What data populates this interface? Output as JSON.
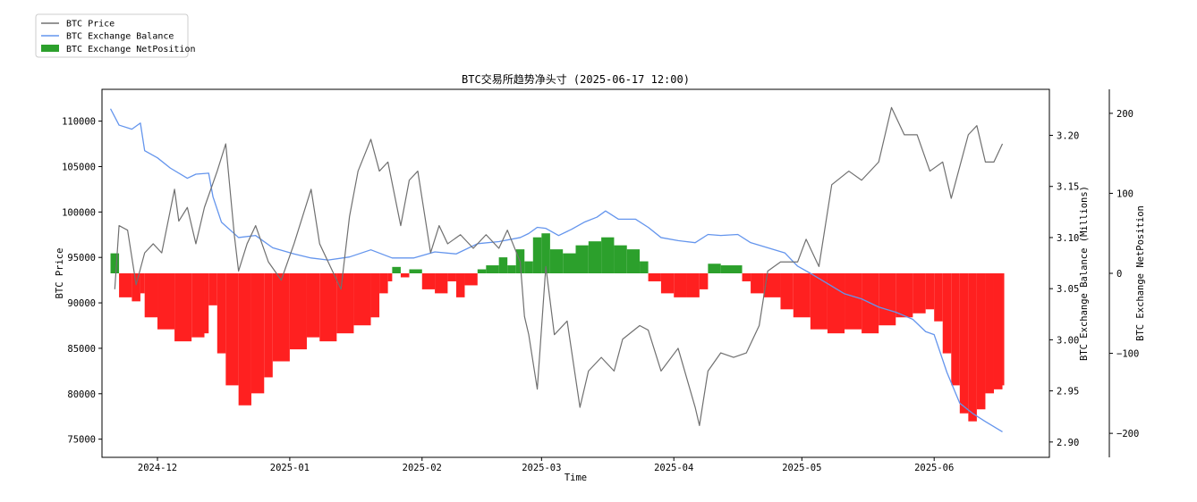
{
  "chart_data": {
    "type": "line",
    "title": "BTC交易所趋势净头寸 (2025-06-17 12:00)",
    "xlabel": "Time",
    "ylabel_left": "BTC Price",
    "ylabel_right1": "BTC Exchange Balance (Millions)",
    "ylabel_right2": "BTC Exchange NetPosition",
    "x_range": [
      "2024-11-18",
      "2025-06-28"
    ],
    "x_ticks": [
      "2024-12",
      "2025-01",
      "2025-02",
      "2025-03",
      "2025-04",
      "2025-05",
      "2025-06"
    ],
    "x_tick_dates": [
      "2024-12-01",
      "2025-01-01",
      "2025-02-01",
      "2025-03-01",
      "2025-04-01",
      "2025-05-01",
      "2025-06-01"
    ],
    "y_left": {
      "range": [
        73000,
        113500
      ],
      "ticks": [
        75000,
        80000,
        85000,
        90000,
        95000,
        100000,
        105000,
        110000
      ]
    },
    "y_right1": {
      "range": [
        2.885,
        3.245
      ],
      "ticks": [
        2.9,
        2.95,
        3.0,
        3.05,
        3.1,
        3.15,
        3.2
      ]
    },
    "y_right2": {
      "range": [
        -230,
        230
      ],
      "ticks": [
        -200,
        -100,
        0,
        100,
        200
      ]
    },
    "grid": false,
    "legend": {
      "placement": "top-left, outside plot",
      "entries": [
        "BTC Price",
        "BTC Exchange Balance",
        "BTC Exchange NetPosition"
      ]
    },
    "colors": {
      "price": "#707070",
      "balance": "#6495ed",
      "net_positive": "#2ca02c",
      "net_negative": "#ff2020"
    },
    "series": [
      {
        "name": "BTC Price",
        "axis": "left",
        "style": "line",
        "points": [
          [
            "2024-11-21",
            91500
          ],
          [
            "2024-11-22",
            98500
          ],
          [
            "2024-11-24",
            98000
          ],
          [
            "2024-11-26",
            92000
          ],
          [
            "2024-11-28",
            95500
          ],
          [
            "2024-11-30",
            96500
          ],
          [
            "2024-12-02",
            95500
          ],
          [
            "2024-12-05",
            102500
          ],
          [
            "2024-12-06",
            99000
          ],
          [
            "2024-12-08",
            100500
          ],
          [
            "2024-12-10",
            96500
          ],
          [
            "2024-12-12",
            100500
          ],
          [
            "2024-12-15",
            104500
          ],
          [
            "2024-12-17",
            107500
          ],
          [
            "2024-12-19",
            97500
          ],
          [
            "2024-12-20",
            93500
          ],
          [
            "2024-12-22",
            96500
          ],
          [
            "2024-12-24",
            98500
          ],
          [
            "2024-12-27",
            94500
          ],
          [
            "2024-12-30",
            92500
          ],
          [
            "2025-01-02",
            96500
          ],
          [
            "2025-01-06",
            102500
          ],
          [
            "2025-01-08",
            96500
          ],
          [
            "2025-01-10",
            94500
          ],
          [
            "2025-01-13",
            91500
          ],
          [
            "2025-01-15",
            99500
          ],
          [
            "2025-01-17",
            104500
          ],
          [
            "2025-01-20",
            108000
          ],
          [
            "2025-01-22",
            104500
          ],
          [
            "2025-01-24",
            105500
          ],
          [
            "2025-01-27",
            98500
          ],
          [
            "2025-01-29",
            103500
          ],
          [
            "2025-01-31",
            104500
          ],
          [
            "2025-02-03",
            95500
          ],
          [
            "2025-02-05",
            98500
          ],
          [
            "2025-02-07",
            96500
          ],
          [
            "2025-02-10",
            97500
          ],
          [
            "2025-02-13",
            96000
          ],
          [
            "2025-02-16",
            97500
          ],
          [
            "2025-02-19",
            96000
          ],
          [
            "2025-02-21",
            98000
          ],
          [
            "2025-02-24",
            94500
          ],
          [
            "2025-02-25",
            88500
          ],
          [
            "2025-02-26",
            86500
          ],
          [
            "2025-02-28",
            80500
          ],
          [
            "2025-03-02",
            94000
          ],
          [
            "2025-03-04",
            86500
          ],
          [
            "2025-03-07",
            88000
          ],
          [
            "2025-03-10",
            78500
          ],
          [
            "2025-03-12",
            82500
          ],
          [
            "2025-03-15",
            84000
          ],
          [
            "2025-03-18",
            82500
          ],
          [
            "2025-03-20",
            86000
          ],
          [
            "2025-03-24",
            87500
          ],
          [
            "2025-03-26",
            87000
          ],
          [
            "2025-03-29",
            82500
          ],
          [
            "2025-04-02",
            85000
          ],
          [
            "2025-04-06",
            78500
          ],
          [
            "2025-04-07",
            76500
          ],
          [
            "2025-04-09",
            82500
          ],
          [
            "2025-04-12",
            84500
          ],
          [
            "2025-04-15",
            84000
          ],
          [
            "2025-04-18",
            84500
          ],
          [
            "2025-04-21",
            87500
          ],
          [
            "2025-04-23",
            93500
          ],
          [
            "2025-04-26",
            94500
          ],
          [
            "2025-04-30",
            94500
          ],
          [
            "2025-05-02",
            97000
          ],
          [
            "2025-05-05",
            94000
          ],
          [
            "2025-05-08",
            103000
          ],
          [
            "2025-05-12",
            104500
          ],
          [
            "2025-05-15",
            103500
          ],
          [
            "2025-05-19",
            105500
          ],
          [
            "2025-05-22",
            111500
          ],
          [
            "2025-05-25",
            108500
          ],
          [
            "2025-05-28",
            108500
          ],
          [
            "2025-05-31",
            104500
          ],
          [
            "2025-06-03",
            105500
          ],
          [
            "2025-06-05",
            101500
          ],
          [
            "2025-06-09",
            108500
          ],
          [
            "2025-06-11",
            109500
          ],
          [
            "2025-06-13",
            105500
          ],
          [
            "2025-06-15",
            105500
          ],
          [
            "2025-06-17",
            107500
          ]
        ]
      },
      {
        "name": "BTC Exchange Balance",
        "axis": "right1",
        "style": "line",
        "points": [
          [
            "2024-11-20",
            3.226
          ],
          [
            "2024-11-22",
            3.21
          ],
          [
            "2024-11-25",
            3.206
          ],
          [
            "2024-11-27",
            3.212
          ],
          [
            "2024-11-28",
            3.185
          ],
          [
            "2024-12-01",
            3.178
          ],
          [
            "2024-12-04",
            3.168
          ],
          [
            "2024-12-08",
            3.158
          ],
          [
            "2024-12-10",
            3.162
          ],
          [
            "2024-12-13",
            3.163
          ],
          [
            "2024-12-14",
            3.14
          ],
          [
            "2024-12-16",
            3.115
          ],
          [
            "2024-12-20",
            3.1
          ],
          [
            "2024-12-24",
            3.102
          ],
          [
            "2024-12-28",
            3.09
          ],
          [
            "2025-01-02",
            3.084
          ],
          [
            "2025-01-06",
            3.08
          ],
          [
            "2025-01-10",
            3.078
          ],
          [
            "2025-01-15",
            3.081
          ],
          [
            "2025-01-20",
            3.088
          ],
          [
            "2025-01-25",
            3.08
          ],
          [
            "2025-01-30",
            3.08
          ],
          [
            "2025-02-04",
            3.086
          ],
          [
            "2025-02-09",
            3.084
          ],
          [
            "2025-02-14",
            3.094
          ],
          [
            "2025-02-19",
            3.096
          ],
          [
            "2025-02-24",
            3.1
          ],
          [
            "2025-02-26",
            3.104
          ],
          [
            "2025-02-28",
            3.11
          ],
          [
            "2025-03-02",
            3.109
          ],
          [
            "2025-03-05",
            3.102
          ],
          [
            "2025-03-08",
            3.108
          ],
          [
            "2025-03-11",
            3.115
          ],
          [
            "2025-03-14",
            3.12
          ],
          [
            "2025-03-16",
            3.126
          ],
          [
            "2025-03-19",
            3.118
          ],
          [
            "2025-03-23",
            3.118
          ],
          [
            "2025-03-26",
            3.11
          ],
          [
            "2025-03-29",
            3.1
          ],
          [
            "2025-04-02",
            3.097
          ],
          [
            "2025-04-06",
            3.095
          ],
          [
            "2025-04-09",
            3.103
          ],
          [
            "2025-04-12",
            3.102
          ],
          [
            "2025-04-16",
            3.103
          ],
          [
            "2025-04-19",
            3.095
          ],
          [
            "2025-04-23",
            3.09
          ],
          [
            "2025-04-27",
            3.085
          ],
          [
            "2025-04-30",
            3.072
          ],
          [
            "2025-05-03",
            3.065
          ],
          [
            "2025-05-07",
            3.055
          ],
          [
            "2025-05-11",
            3.045
          ],
          [
            "2025-05-15",
            3.04
          ],
          [
            "2025-05-19",
            3.032
          ],
          [
            "2025-05-23",
            3.027
          ],
          [
            "2025-05-27",
            3.02
          ],
          [
            "2025-05-30",
            3.008
          ],
          [
            "2025-06-01",
            3.005
          ],
          [
            "2025-06-04",
            2.968
          ],
          [
            "2025-06-07",
            2.938
          ],
          [
            "2025-06-10",
            2.928
          ],
          [
            "2025-06-13",
            2.92
          ],
          [
            "2025-06-17",
            2.91
          ]
        ]
      },
      {
        "name": "BTC Exchange NetPosition",
        "axis": "right2",
        "style": "bars",
        "points": [
          [
            "2024-11-20",
            25
          ],
          [
            "2024-11-22",
            -30
          ],
          [
            "2024-11-25",
            -35
          ],
          [
            "2024-11-27",
            -25
          ],
          [
            "2024-11-28",
            -55
          ],
          [
            "2024-12-01",
            -70
          ],
          [
            "2024-12-05",
            -85
          ],
          [
            "2024-12-09",
            -80
          ],
          [
            "2024-12-12",
            -75
          ],
          [
            "2024-12-13",
            -40
          ],
          [
            "2024-12-15",
            -100
          ],
          [
            "2024-12-17",
            -140
          ],
          [
            "2024-12-20",
            -165
          ],
          [
            "2024-12-23",
            -150
          ],
          [
            "2024-12-26",
            -130
          ],
          [
            "2024-12-28",
            -110
          ],
          [
            "2025-01-01",
            -95
          ],
          [
            "2025-01-05",
            -80
          ],
          [
            "2025-01-08",
            -85
          ],
          [
            "2025-01-12",
            -75
          ],
          [
            "2025-01-16",
            -65
          ],
          [
            "2025-01-20",
            -55
          ],
          [
            "2025-01-22",
            -25
          ],
          [
            "2025-01-24",
            -10
          ],
          [
            "2025-01-25",
            8
          ],
          [
            "2025-01-27",
            -5
          ],
          [
            "2025-01-29",
            5
          ],
          [
            "2025-02-01",
            -20
          ],
          [
            "2025-02-04",
            -25
          ],
          [
            "2025-02-07",
            -10
          ],
          [
            "2025-02-09",
            -30
          ],
          [
            "2025-02-11",
            -15
          ],
          [
            "2025-02-14",
            5
          ],
          [
            "2025-02-16",
            10
          ],
          [
            "2025-02-19",
            20
          ],
          [
            "2025-02-21",
            10
          ],
          [
            "2025-02-23",
            30
          ],
          [
            "2025-02-25",
            15
          ],
          [
            "2025-02-27",
            45
          ],
          [
            "2025-03-01",
            50
          ],
          [
            "2025-03-03",
            30
          ],
          [
            "2025-03-06",
            25
          ],
          [
            "2025-03-09",
            35
          ],
          [
            "2025-03-12",
            40
          ],
          [
            "2025-03-15",
            45
          ],
          [
            "2025-03-18",
            35
          ],
          [
            "2025-03-21",
            30
          ],
          [
            "2025-03-24",
            15
          ],
          [
            "2025-03-26",
            -10
          ],
          [
            "2025-03-29",
            -25
          ],
          [
            "2025-04-01",
            -30
          ],
          [
            "2025-04-04",
            -30
          ],
          [
            "2025-04-07",
            -20
          ],
          [
            "2025-04-09",
            12
          ],
          [
            "2025-04-12",
            10
          ],
          [
            "2025-04-15",
            10
          ],
          [
            "2025-04-17",
            -10
          ],
          [
            "2025-04-19",
            -25
          ],
          [
            "2025-04-22",
            -30
          ],
          [
            "2025-04-26",
            -45
          ],
          [
            "2025-04-29",
            -55
          ],
          [
            "2025-05-03",
            -70
          ],
          [
            "2025-05-07",
            -75
          ],
          [
            "2025-05-11",
            -70
          ],
          [
            "2025-05-15",
            -75
          ],
          [
            "2025-05-19",
            -65
          ],
          [
            "2025-05-23",
            -55
          ],
          [
            "2025-05-27",
            -50
          ],
          [
            "2025-05-30",
            -45
          ],
          [
            "2025-06-01",
            -60
          ],
          [
            "2025-06-03",
            -100
          ],
          [
            "2025-06-05",
            -140
          ],
          [
            "2025-06-07",
            -175
          ],
          [
            "2025-06-09",
            -185
          ],
          [
            "2025-06-11",
            -170
          ],
          [
            "2025-06-13",
            -150
          ],
          [
            "2025-06-15",
            -145
          ],
          [
            "2025-06-17",
            -140
          ]
        ]
      }
    ]
  }
}
